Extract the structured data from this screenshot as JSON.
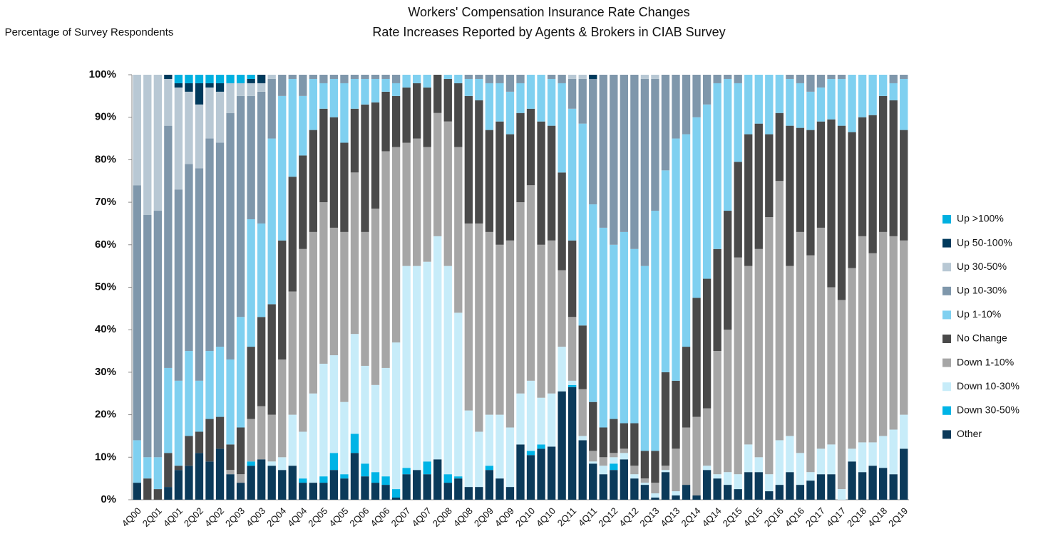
{
  "chart_data": {
    "type": "stacked_bar",
    "title": "Workers' Compensation Insurance Rate Changes",
    "subtitle": "Rate Increases Reported by Agents & Brokers in CIAB Survey",
    "y_label": "Percentage of Survey Respondents",
    "categories": [
      "4Q00",
      null,
      "2Q01",
      null,
      "4Q01",
      null,
      "2Q02",
      null,
      "4Q02",
      null,
      "2Q03",
      null,
      "4Q03",
      null,
      "2Q04",
      null,
      "4Q04",
      null,
      "2Q05",
      null,
      "4Q05",
      null,
      "2Q06",
      null,
      "4Q06",
      null,
      "2Q07",
      null,
      "4Q07",
      null,
      "2Q08",
      null,
      "4Q08",
      null,
      "2Q09",
      null,
      "4Q09",
      null,
      "2Q10",
      null,
      "4Q10",
      null,
      "2Q11",
      null,
      "4Q11",
      null,
      "2Q12",
      null,
      "4Q12",
      null,
      "2Q13",
      null,
      "4Q13",
      null,
      "2Q14",
      null,
      "4Q14",
      null,
      "2Q15",
      null,
      "4Q15",
      null,
      "2Q16",
      null,
      "4Q16",
      null,
      "2Q17",
      null,
      "4Q17",
      null,
      "2Q18",
      null,
      "4Q18",
      null,
      "2Q19"
    ],
    "series": [
      {
        "name": "Other",
        "color": "#0b3a5a",
        "values": [
          4,
          0,
          0,
          3,
          7,
          8,
          11,
          9,
          12,
          6,
          4,
          8,
          9.5,
          8,
          7,
          8,
          4,
          4,
          4,
          7,
          5,
          11,
          5.5,
          4,
          3.5,
          0.5,
          6,
          7,
          6,
          9.5,
          4,
          5,
          3,
          3,
          7,
          5,
          3,
          13,
          10.5,
          12,
          12.5,
          25.5,
          26.5,
          14,
          8.5,
          6,
          7,
          9.5,
          5,
          3.5,
          0.5,
          6.5,
          1,
          3.5,
          1,
          7,
          5,
          3.5,
          2.5,
          6.5,
          6.5,
          2,
          3.5,
          6.5,
          3.5,
          4.5,
          6,
          6,
          0,
          9,
          6.5,
          8,
          7.5,
          6,
          12
        ]
      },
      {
        "name": "Down 30-50%",
        "color": "#00b4e6",
        "values": [
          0,
          0,
          0,
          0,
          0,
          0,
          0,
          0,
          0,
          0,
          0,
          1,
          0,
          0,
          0,
          0,
          1,
          0,
          1.5,
          4,
          1,
          4.5,
          3,
          2.5,
          2,
          2,
          1.5,
          0,
          3,
          0,
          2,
          0.5,
          0,
          0,
          1,
          0,
          0,
          0,
          1,
          1,
          0,
          0,
          0.5,
          0,
          0,
          0,
          1.5,
          0,
          0,
          0,
          0,
          0,
          0,
          0,
          0,
          0,
          0,
          0,
          0,
          0,
          0,
          0,
          0,
          0,
          0,
          0,
          0,
          0,
          0,
          0,
          0,
          0,
          0,
          0,
          0
        ]
      },
      {
        "name": "Down 10-30%",
        "color": "#c7ecf9",
        "values": [
          0,
          0,
          0,
          0,
          0,
          0,
          0,
          0,
          0,
          0,
          0,
          0,
          0,
          1,
          3,
          12,
          11,
          21,
          26.5,
          23,
          17,
          23.5,
          23,
          20.5,
          25.5,
          34.5,
          47.5,
          48,
          47,
          52.5,
          49,
          38.5,
          18,
          13,
          12,
          15,
          14,
          12,
          16.5,
          11,
          12.5,
          10.5,
          1,
          1,
          0.5,
          2,
          1.5,
          1.5,
          1,
          0.5,
          1,
          0.5,
          1,
          0,
          0,
          1,
          1,
          3,
          3.5,
          6.5,
          3.5,
          4,
          10.5,
          8.5,
          7.5,
          2,
          6,
          7,
          2.5,
          3,
          7,
          5.5,
          7.5,
          10.5,
          8
        ]
      },
      {
        "name": "Down 1-10%",
        "color": "#a6a6a6",
        "values": [
          0,
          0,
          0,
          0,
          0,
          0,
          0,
          0,
          0,
          1,
          2,
          10,
          12.5,
          11,
          23,
          29,
          43,
          38,
          38,
          30,
          40,
          38,
          31.5,
          41.5,
          51,
          46,
          29,
          30,
          27,
          29,
          34,
          39,
          44,
          49,
          43,
          40,
          44,
          45,
          46,
          36,
          36,
          18,
          15,
          11,
          2.5,
          2,
          1,
          1,
          2,
          1,
          2.5,
          1,
          10,
          13.5,
          18.5,
          13.5,
          29,
          33.5,
          51,
          42,
          49,
          60.5,
          61,
          40,
          52,
          51,
          52,
          37,
          44.5,
          42.5,
          48.5,
          44.5,
          48,
          45.5,
          41
        ]
      },
      {
        "name": "No Change",
        "color": "#4a4a4a",
        "values": [
          0,
          5,
          2.5,
          8,
          1,
          7,
          5,
          10,
          7.5,
          6,
          11,
          17,
          21,
          26,
          28,
          27,
          22,
          24,
          22,
          26,
          21,
          15,
          30,
          25,
          14,
          12,
          13,
          13,
          14,
          9,
          10,
          15,
          30,
          29,
          24,
          29,
          25,
          21,
          18,
          29,
          27,
          23,
          18,
          15,
          11.5,
          7,
          8,
          6,
          10,
          6.5,
          7.5,
          22,
          16,
          19,
          28,
          30.5,
          24,
          28,
          22.5,
          31,
          29.5,
          19.5,
          16,
          33,
          24.5,
          29.5,
          25,
          39.5,
          41,
          32,
          28,
          32.5,
          32,
          32,
          26
        ]
      },
      {
        "name": "Up 1-10%",
        "color": "#7fd0f0",
        "values": [
          10,
          5,
          7.5,
          20,
          20,
          20,
          12,
          16,
          16.5,
          20,
          26,
          30,
          22,
          39,
          34,
          23,
          14,
          12,
          6,
          9,
          14,
          7,
          6,
          5.5,
          3,
          3,
          3,
          2,
          3,
          0,
          1,
          2,
          4,
          5,
          11,
          9,
          10,
          7,
          8,
          11,
          11,
          21,
          31,
          47.5,
          46.5,
          47,
          41,
          45,
          41,
          43.5,
          56.5,
          47.5,
          57,
          50,
          42.5,
          41,
          39,
          31,
          18.5,
          14,
          11.5,
          14,
          9,
          11,
          10.5,
          9,
          8,
          9.5,
          11,
          13.5,
          10,
          9.5,
          5,
          4,
          12
        ]
      },
      {
        "name": "Up 10-30%",
        "color": "#7f97ab",
        "values": [
          60,
          57,
          58,
          57,
          45,
          44,
          50,
          50,
          48,
          58,
          52,
          29,
          31,
          14,
          5,
          1,
          5,
          1,
          2,
          1,
          2,
          1,
          1,
          1,
          1,
          2,
          0,
          0,
          0,
          0,
          0,
          0,
          1,
          1,
          2,
          2,
          4,
          2,
          0,
          0,
          1,
          2,
          7,
          10.5,
          29.5,
          36,
          40,
          37,
          41,
          44,
          31,
          22.5,
          15,
          14,
          10,
          7,
          2,
          1,
          2,
          0,
          0,
          0,
          0,
          1,
          2,
          4,
          3,
          1,
          1,
          0,
          0,
          0,
          0,
          2,
          1
        ]
      },
      {
        "name": "Up 30-50%",
        "color": "#b8c8d4",
        "values": [
          26,
          33,
          32,
          11,
          24,
          17,
          15,
          12,
          12,
          7,
          3,
          3,
          2,
          1,
          0,
          0,
          0,
          0,
          0,
          0,
          0,
          0,
          0,
          0,
          0,
          0,
          0,
          0,
          0,
          0,
          0,
          0,
          0,
          0,
          0,
          0,
          0,
          0,
          0,
          0,
          0,
          0,
          1,
          1,
          0,
          0,
          0,
          0,
          0,
          1,
          1,
          0,
          0,
          0,
          0,
          0,
          0,
          0,
          0,
          0,
          0,
          0,
          0,
          0,
          0,
          0,
          0,
          0,
          0,
          0,
          0,
          0,
          0,
          0,
          0
        ]
      },
      {
        "name": "Up 50-100%",
        "color": "#003a5c",
        "values": [
          0,
          0,
          0,
          1,
          1,
          2,
          5,
          1,
          2,
          0,
          0,
          1,
          2,
          0,
          0,
          0,
          0,
          0,
          0,
          0,
          0,
          0,
          0,
          0,
          0,
          0,
          0,
          0,
          0,
          0,
          0,
          0,
          0,
          0,
          0,
          0,
          0,
          0,
          0,
          0,
          0,
          0,
          0,
          0,
          1,
          0,
          0,
          0,
          0,
          0,
          0,
          0,
          0,
          0,
          0,
          0,
          0,
          0,
          0,
          0,
          0,
          0,
          0,
          0,
          0,
          0,
          0,
          0,
          0,
          0,
          0,
          0,
          0,
          0,
          0
        ]
      },
      {
        "name": "Up >100%",
        "color": "#00b0e0",
        "values": [
          0,
          0,
          0,
          0,
          2,
          2,
          2,
          2,
          2,
          2,
          2,
          1,
          0,
          0,
          0,
          0,
          0,
          0,
          0,
          0,
          0,
          0,
          0,
          0,
          0,
          0,
          0,
          0,
          0,
          0,
          0,
          0,
          0,
          0,
          0,
          0,
          0,
          0,
          0,
          0,
          0,
          0,
          0,
          0,
          0,
          0,
          0,
          0,
          0,
          0,
          0,
          0,
          0,
          0,
          0,
          0,
          0,
          0,
          0,
          0,
          0,
          0,
          0,
          0,
          0,
          0,
          0,
          0,
          0,
          0,
          0,
          0,
          0,
          0,
          0
        ]
      }
    ],
    "ylim": [
      0,
      100
    ],
    "yticks": [
      {
        "value": 0,
        "label": "0%"
      },
      {
        "value": 10,
        "label": "10%"
      },
      {
        "value": 20,
        "label": "20%"
      },
      {
        "value": 30,
        "label": "30%"
      },
      {
        "value": 40,
        "label": "40%"
      },
      {
        "value": 50,
        "label": "50%"
      },
      {
        "value": 60,
        "label": "60%"
      },
      {
        "value": 70,
        "label": "70%"
      },
      {
        "value": 80,
        "label": "80%"
      },
      {
        "value": 90,
        "label": "90%"
      },
      {
        "value": 100,
        "label": "100%"
      }
    ],
    "grid": false,
    "legend": "right"
  }
}
